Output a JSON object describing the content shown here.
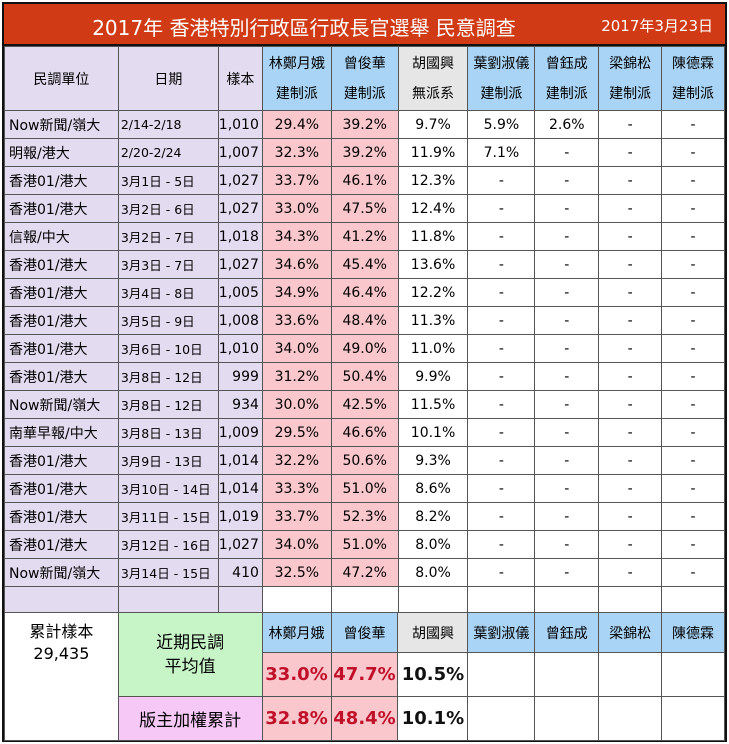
{
  "title": "2017年 香港特別行政區行政長官選舉 民意調查",
  "date": "2017年3月23日",
  "headers": {
    "org": "民調單位",
    "dates": "日期",
    "sample": "樣本"
  },
  "candidates": [
    {
      "name": "林鄭月娥",
      "faction": "建制派",
      "color": "#a9d4f5"
    },
    {
      "name": "曾俊華",
      "faction": "建制派",
      "color": "#a9d4f5"
    },
    {
      "name": "胡國興",
      "faction": "無派系",
      "color": "#e6e6e6"
    },
    {
      "name": "葉劉淑儀",
      "faction": "建制派",
      "color": "#a9d4f5"
    },
    {
      "name": "曾鈺成",
      "faction": "建制派",
      "color": "#a9d4f5"
    },
    {
      "name": "梁錦松",
      "faction": "建制派",
      "color": "#a9d4f5"
    },
    {
      "name": "陳德霖",
      "faction": "建制派",
      "color": "#a9d4f5"
    }
  ],
  "chart_data": {
    "type": "table",
    "columns": [
      "民調單位",
      "日期",
      "樣本",
      "林鄭月娥",
      "曾俊華",
      "胡國興",
      "葉劉淑儀",
      "曾鈺成",
      "梁錦松",
      "陳德霖"
    ],
    "rows": [
      [
        "Now新聞/嶺大",
        "2/14-2/18",
        "1,010",
        "29.4%",
        "39.2%",
        "9.7%",
        "5.9%",
        "2.6%",
        "-",
        "-"
      ],
      [
        "明報/港大",
        "2/20-2/24",
        "1,007",
        "32.3%",
        "39.2%",
        "11.9%",
        "7.1%",
        "-",
        "-",
        "-"
      ],
      [
        "香港01/港大",
        "3月1日 - 5日",
        "1,027",
        "33.7%",
        "46.1%",
        "12.3%",
        "-",
        "-",
        "-",
        "-"
      ],
      [
        "香港01/港大",
        "3月2日 - 6日",
        "1,027",
        "33.0%",
        "47.5%",
        "12.4%",
        "-",
        "-",
        "-",
        "-"
      ],
      [
        "信報/中大",
        "3月2日 - 7日",
        "1,018",
        "34.3%",
        "41.2%",
        "11.8%",
        "-",
        "-",
        "-",
        "-"
      ],
      [
        "香港01/港大",
        "3月3日 - 7日",
        "1,027",
        "34.6%",
        "45.4%",
        "13.6%",
        "-",
        "-",
        "-",
        "-"
      ],
      [
        "香港01/港大",
        "3月4日 - 8日",
        "1,005",
        "34.9%",
        "46.4%",
        "12.2%",
        "-",
        "-",
        "-",
        "-"
      ],
      [
        "香港01/港大",
        "3月5日 - 9日",
        "1,008",
        "33.6%",
        "48.4%",
        "11.3%",
        "-",
        "-",
        "-",
        "-"
      ],
      [
        "香港01/港大",
        "3月6日 - 10日",
        "1,010",
        "34.0%",
        "49.0%",
        "11.0%",
        "-",
        "-",
        "-",
        "-"
      ],
      [
        "香港01/港大",
        "3月8日 - 12日",
        "999",
        "31.2%",
        "50.4%",
        "9.9%",
        "-",
        "-",
        "-",
        "-"
      ],
      [
        "Now新聞/嶺大",
        "3月8日 - 12日",
        "934",
        "30.0%",
        "42.5%",
        "11.5%",
        "-",
        "-",
        "-",
        "-"
      ],
      [
        "南華早報/中大",
        "3月8日 - 13日",
        "1,009",
        "29.5%",
        "46.6%",
        "10.1%",
        "-",
        "-",
        "-",
        "-"
      ],
      [
        "香港01/港大",
        "3月9日 - 13日",
        "1,014",
        "32.2%",
        "50.6%",
        "9.3%",
        "-",
        "-",
        "-",
        "-"
      ],
      [
        "香港01/港大",
        "3月10日 - 14日",
        "1,014",
        "33.3%",
        "51.0%",
        "8.6%",
        "-",
        "-",
        "-",
        "-"
      ],
      [
        "香港01/港大",
        "3月11日 - 15日",
        "1,019",
        "33.7%",
        "52.3%",
        "8.2%",
        "-",
        "-",
        "-",
        "-"
      ],
      [
        "香港01/港大",
        "3月12日 - 16日",
        "1,027",
        "34.0%",
        "51.0%",
        "8.0%",
        "-",
        "-",
        "-",
        "-"
      ],
      [
        "Now新聞/嶺大",
        "3月14日 - 15日",
        "410",
        "32.5%",
        "47.2%",
        "8.0%",
        "-",
        "-",
        "-",
        "-"
      ]
    ]
  },
  "summary": {
    "total_label": "累計樣本",
    "total_value": "29,435",
    "recent_avg_label": "近期民調平均值",
    "recent_avg_line1": "近期民調",
    "recent_avg_line2": "平均值",
    "recent_avg": [
      "33.0%",
      "47.7%",
      "10.5%"
    ],
    "weighted_label": "版主加權累計",
    "weighted": [
      "32.8%",
      "48.4%",
      "10.1%"
    ]
  },
  "colors": {
    "title_bg": "#d03a15",
    "candidate_header": "#a9d4f5",
    "neutral_header": "#e6e6e6",
    "lam_ts": "#f9c7cc",
    "org_col": "#e3dcf0",
    "avg_bg": "#c8f5c8",
    "weighted_bg": "#f5c8f5",
    "summary_value": "#c0102a"
  }
}
